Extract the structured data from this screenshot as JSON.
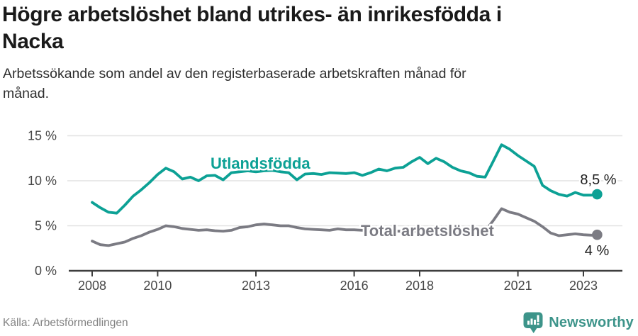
{
  "header": {
    "title_lines": [
      "Högre arbetslöshet bland utrikes- än inrikesfödda i",
      "Nacka"
    ],
    "subtitle_lines": [
      "Arbetssökande som andel av den registerbaserade arbetskraften månad för",
      "månad."
    ]
  },
  "footer": {
    "source": "Källa: Arbetsförmedlingen",
    "brand": "Newsworthy"
  },
  "colors": {
    "series_foreign": "#0ca195",
    "series_total": "#7b7b83",
    "grid": "#e2e2e2",
    "axis": "#3e3e3e",
    "tick_label": "#474747",
    "end_label": "#1d1d1d",
    "title": "#1a1a1a",
    "subtitle": "#2e2e2e",
    "brand_teal": "#3d948a",
    "source_gray": "#828282"
  },
  "chart_data": {
    "type": "line",
    "title": "Högre arbetslöshet bland utrikes- än inrikesfödda i Nacka",
    "subtitle": "Arbetssökande som andel av den registerbaserade arbetskraften månad för månad.",
    "source": "Källa: Arbetsförmedlingen",
    "unit": "%",
    "grid": "horizontal",
    "legend": "inline-labels",
    "ylim": [
      0,
      15
    ],
    "xlim": [
      2007.3,
      2024.2
    ],
    "x_ticks": [
      2008,
      2010,
      2013,
      2016,
      2018,
      2021,
      2023
    ],
    "x_tick_labels": [
      "2008",
      "2010",
      "2013",
      "2016",
      "2018",
      "2021",
      "2023"
    ],
    "y_ticks": [
      0,
      5,
      10,
      15
    ],
    "y_tick_labels": [
      "0 %",
      "5 %",
      "10 %",
      "15 %"
    ],
    "x": [
      2008,
      2008.25,
      2008.5,
      2008.75,
      2009,
      2009.25,
      2009.5,
      2009.75,
      2010,
      2010.25,
      2010.5,
      2010.75,
      2011,
      2011.25,
      2011.5,
      2011.75,
      2012,
      2012.25,
      2012.5,
      2012.75,
      2013,
      2013.25,
      2013.5,
      2013.75,
      2014,
      2014.25,
      2014.5,
      2014.75,
      2015,
      2015.25,
      2015.5,
      2015.75,
      2016,
      2016.25,
      2016.5,
      2016.75,
      2017,
      2017.25,
      2017.5,
      2017.75,
      2018,
      2018.25,
      2018.5,
      2018.75,
      2019,
      2019.25,
      2019.5,
      2019.75,
      2020,
      2020.25,
      2020.5,
      2020.75,
      2021,
      2021.25,
      2021.5,
      2021.75,
      2022,
      2022.25,
      2022.5,
      2022.75,
      2023,
      2023.25,
      2023.42
    ],
    "series": [
      {
        "name": "Utlandsfödda",
        "color": "#0ca195",
        "end_label": "8,5 %",
        "end_value": 8.5,
        "values": [
          7.6,
          7.0,
          6.5,
          6.4,
          7.3,
          8.3,
          9.0,
          9.8,
          10.7,
          11.4,
          11.0,
          10.2,
          10.4,
          10.0,
          10.55,
          10.6,
          10.1,
          10.9,
          11.0,
          11.1,
          11.0,
          11.1,
          11.15,
          11.0,
          10.9,
          10.1,
          10.75,
          10.8,
          10.7,
          10.9,
          10.85,
          10.8,
          10.9,
          10.6,
          10.9,
          11.3,
          11.1,
          11.4,
          11.5,
          12.1,
          12.6,
          11.9,
          12.5,
          12.1,
          11.5,
          11.1,
          10.9,
          10.5,
          10.4,
          12.2,
          14.0,
          13.5,
          12.8,
          12.2,
          11.6,
          9.5,
          8.9,
          8.5,
          8.3,
          8.7,
          8.4,
          8.4,
          8.5
        ]
      },
      {
        "name": "Total arbetslöshet",
        "color": "#7b7b83",
        "end_label": "4 %",
        "end_value": 4,
        "values": [
          3.3,
          2.9,
          2.8,
          3.0,
          3.2,
          3.6,
          3.9,
          4.3,
          4.6,
          5.0,
          4.9,
          4.7,
          4.6,
          4.5,
          4.55,
          4.45,
          4.4,
          4.5,
          4.8,
          4.9,
          5.1,
          5.2,
          5.1,
          5.0,
          5.0,
          4.8,
          4.65,
          4.6,
          4.55,
          4.5,
          4.65,
          4.55,
          4.55,
          4.5,
          4.6,
          4.5,
          4.45,
          4.4,
          4.4,
          4.35,
          4.4,
          4.35,
          4.3,
          4.3,
          4.25,
          4.2,
          4.25,
          4.3,
          4.4,
          5.6,
          6.9,
          6.5,
          6.3,
          5.9,
          5.5,
          4.9,
          4.2,
          3.9,
          4.0,
          4.1,
          4.0,
          3.95,
          4.0
        ]
      }
    ]
  }
}
